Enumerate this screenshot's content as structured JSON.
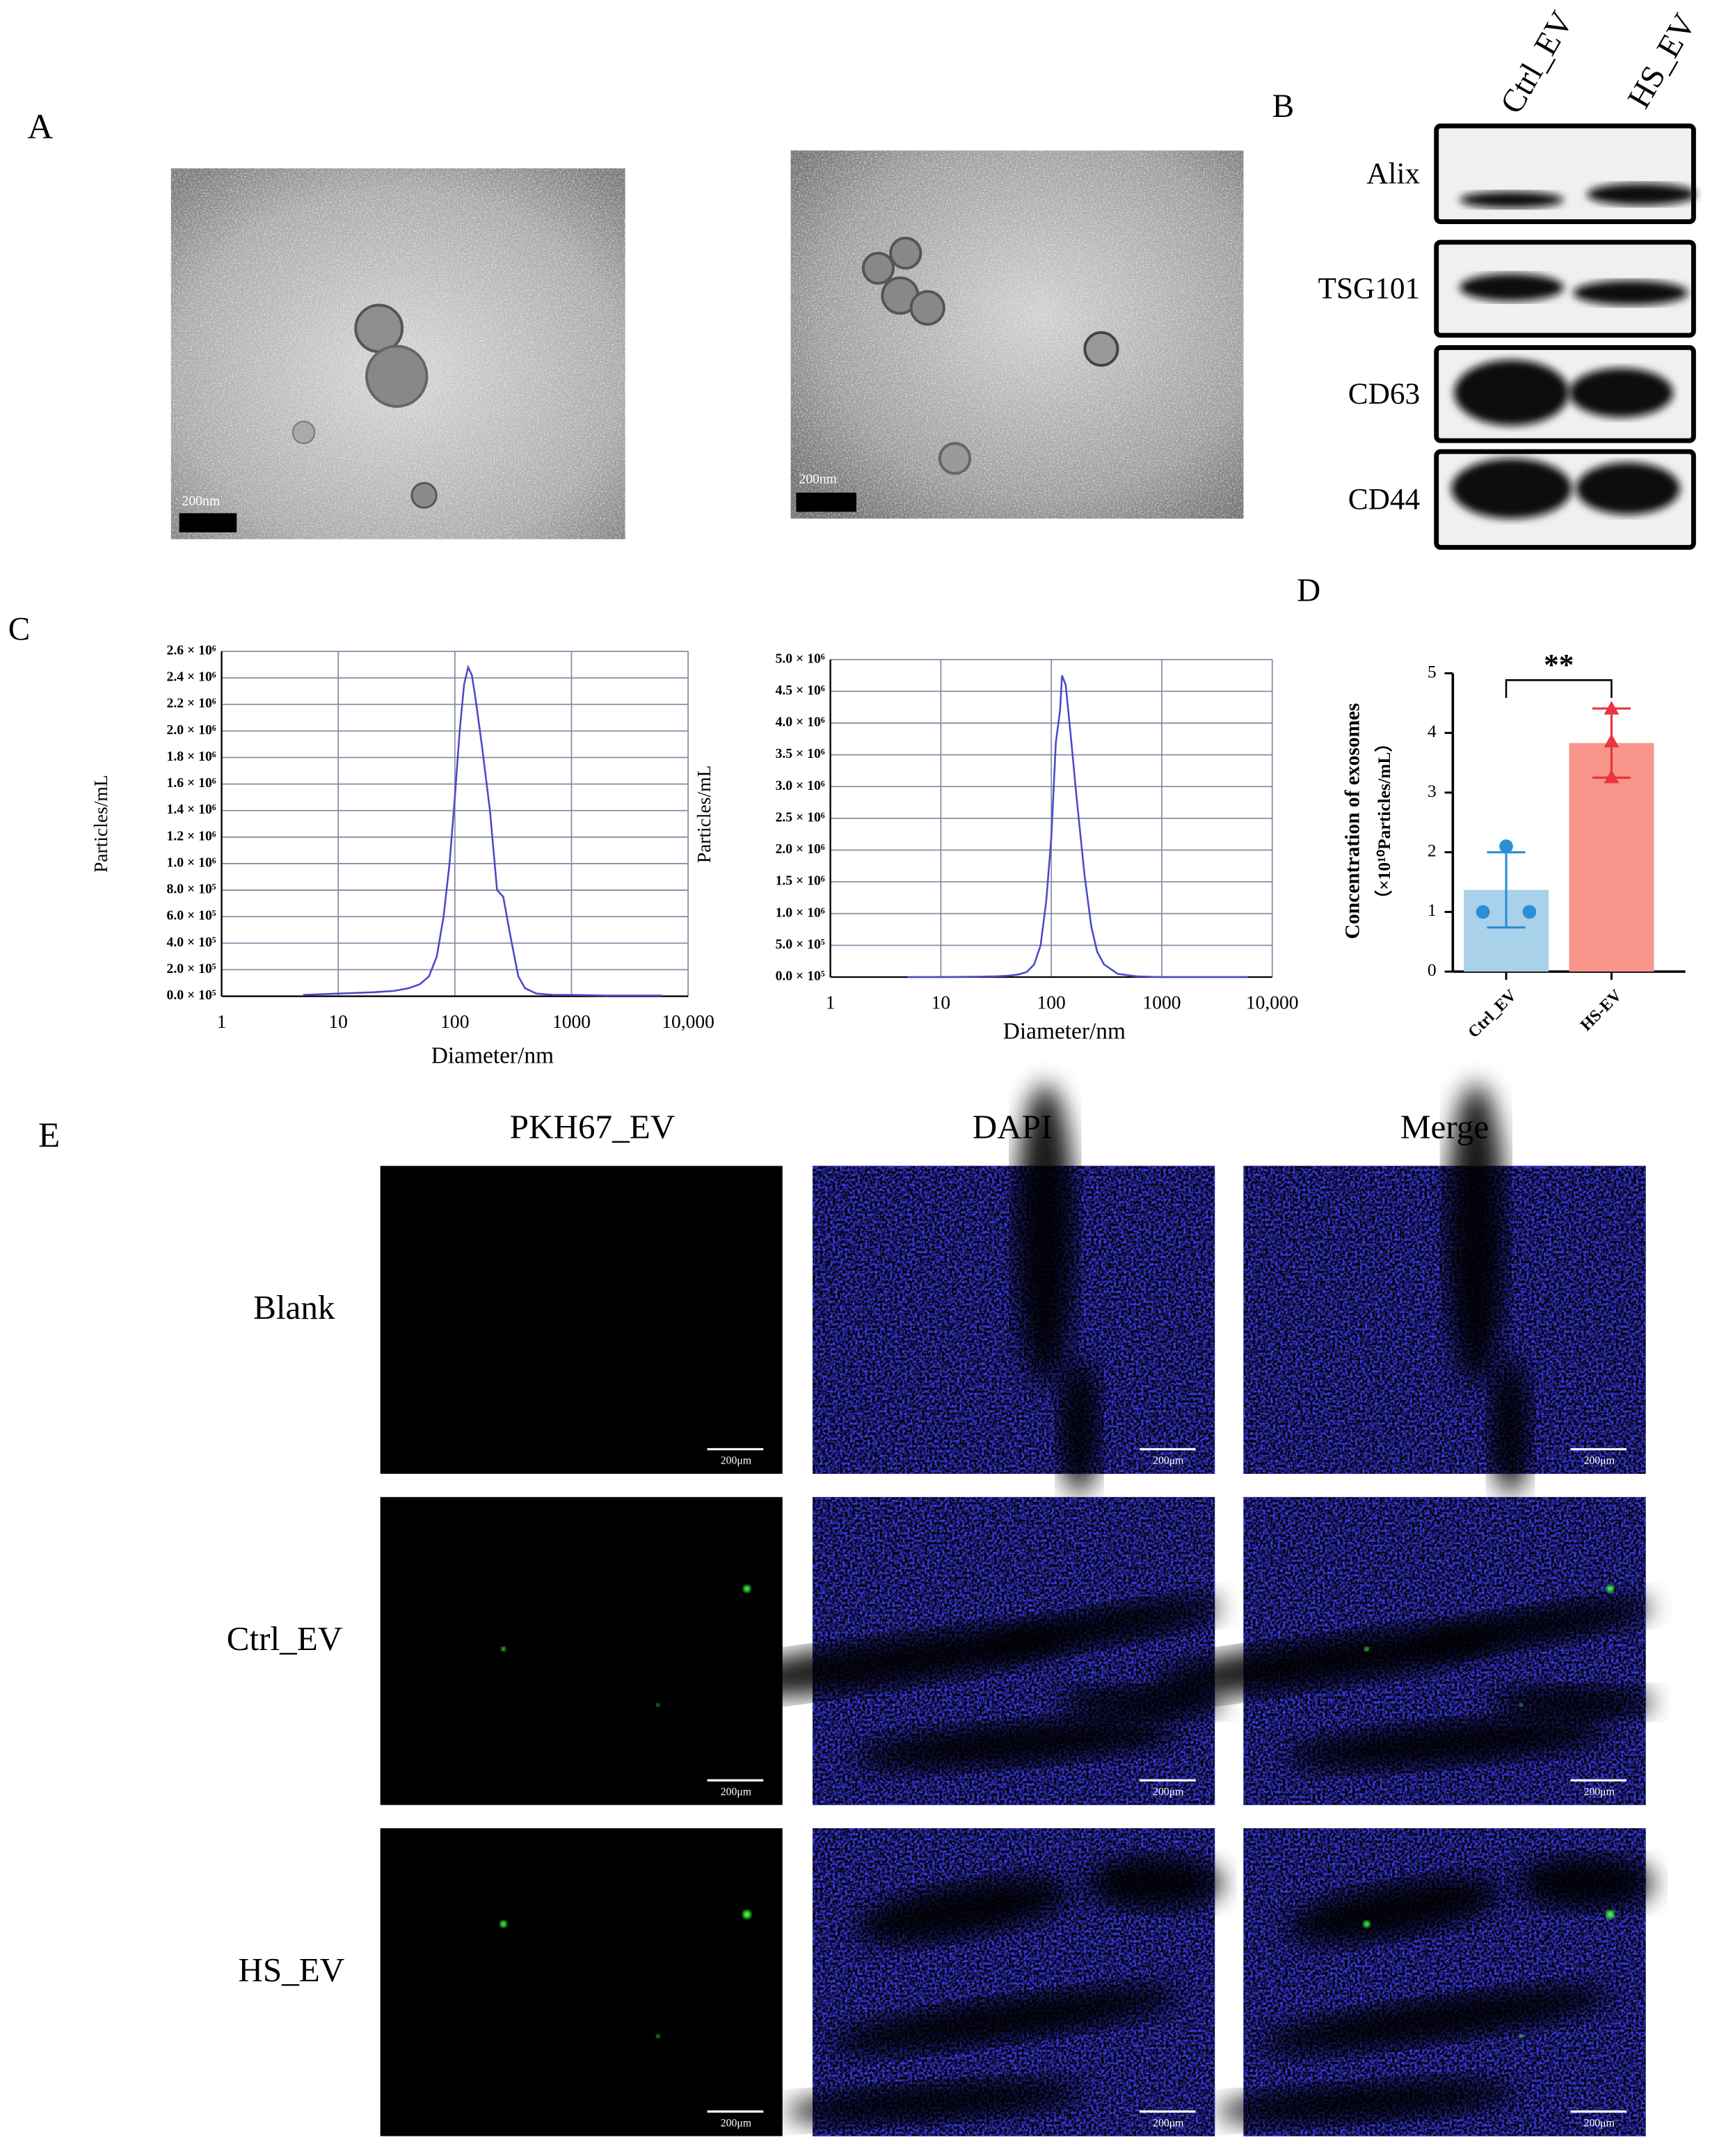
{
  "panel_labels": [
    "A",
    "B",
    "C",
    "D",
    "E"
  ],
  "tem": {
    "scale_labels": [
      "200nm",
      "200nm"
    ]
  },
  "western_blot": {
    "columns": [
      "Ctrl_EV",
      "HS_EV"
    ],
    "rows": [
      "Alix",
      "TSG101",
      "CD63",
      "CD44"
    ]
  },
  "chart_data": [
    {
      "type": "line",
      "xlabel": "Diameter/nm",
      "ylabel": "Particles/mL",
      "xscale": "log",
      "grid": true,
      "color": "#4a4ac8",
      "xlim": [
        1,
        10000
      ],
      "ylim": [
        0,
        2600000
      ],
      "xticks": [
        1,
        10,
        100,
        1000,
        {
          "value": 10000,
          "label": "10,000"
        }
      ],
      "yticks": [
        {
          "value": 0,
          "label": "0.0 × 10⁵"
        },
        {
          "value": 200000,
          "label": "2.0 × 10⁵"
        },
        {
          "value": 400000,
          "label": "4.0 × 10⁵"
        },
        {
          "value": 600000,
          "label": "6.0 × 10⁵"
        },
        {
          "value": 800000,
          "label": "8.0 × 10⁵"
        },
        {
          "value": 1000000,
          "label": "1.0 × 10⁶"
        },
        {
          "value": 1200000,
          "label": "1.2 × 10⁶"
        },
        {
          "value": 1400000,
          "label": "1.4 × 10⁶"
        },
        {
          "value": 1600000,
          "label": "1.6 × 10⁶"
        },
        {
          "value": 1800000,
          "label": "1.8 × 10⁶"
        },
        {
          "value": 2000000,
          "label": "2.0 × 10⁶"
        },
        {
          "value": 2200000,
          "label": "2.2 × 10⁶"
        },
        {
          "value": 2400000,
          "label": "2.4 × 10⁶"
        },
        {
          "value": 2600000,
          "label": "2.6 × 10⁶"
        }
      ],
      "x": [
        5,
        10,
        20,
        30,
        40,
        50,
        60,
        70,
        80,
        90,
        100,
        110,
        120,
        130,
        140,
        150,
        170,
        200,
        230,
        260,
        300,
        350,
        400,
        500,
        700,
        1000,
        2000,
        6000
      ],
      "values": [
        10000,
        20000,
        30000,
        40000,
        60000,
        90000,
        150000,
        300000,
        600000,
        1000000,
        1500000,
        2000000,
        2350000,
        2480000,
        2420000,
        2250000,
        1900000,
        1400000,
        800000,
        750000,
        450000,
        150000,
        60000,
        20000,
        10000,
        10000,
        5000,
        5000
      ]
    },
    {
      "type": "line",
      "xlabel": "Diameter/nm",
      "ylabel": "Particles/mL",
      "xscale": "log",
      "grid": true,
      "color": "#4a4ac8",
      "xlim": [
        1,
        10000
      ],
      "ylim": [
        0,
        5000000
      ],
      "xticks": [
        1,
        10,
        100,
        1000,
        {
          "value": 10000,
          "label": "10,000"
        }
      ],
      "yticks": [
        {
          "value": 0,
          "label": "0.0 × 10⁵"
        },
        {
          "value": 500000,
          "label": "5.0 × 10⁵"
        },
        {
          "value": 1000000,
          "label": "1.0 × 10⁶"
        },
        {
          "value": 1500000,
          "label": "1.5 × 10⁶"
        },
        {
          "value": 2000000,
          "label": "2.0 × 10⁶"
        },
        {
          "value": 2500000,
          "label": "2.5 × 10⁶"
        },
        {
          "value": 3000000,
          "label": "3.0 × 10⁶"
        },
        {
          "value": 3500000,
          "label": "3.5 × 10⁶"
        },
        {
          "value": 4000000,
          "label": "4.0 × 10⁶"
        },
        {
          "value": 4500000,
          "label": "4.5 × 10⁶"
        },
        {
          "value": 5000000,
          "label": "5.0 × 10⁶"
        }
      ],
      "x": [
        5,
        10,
        20,
        30,
        40,
        50,
        60,
        70,
        80,
        90,
        100,
        110,
        120,
        125,
        135,
        150,
        170,
        200,
        230,
        260,
        300,
        400,
        600,
        1000,
        2000,
        6000
      ],
      "values": [
        0,
        0,
        5000,
        10000,
        20000,
        40000,
        80000,
        200000,
        500000,
        1200000,
        2200000,
        3700000,
        4200000,
        4750000,
        4600000,
        3800000,
        2800000,
        1600000,
        800000,
        400000,
        200000,
        50000,
        10000,
        0,
        0,
        0
      ]
    },
    {
      "type": "bar",
      "ylabel": [
        "Concentration of exosomes",
        "（×10¹⁰Particles/mL）"
      ],
      "annotation": "**",
      "categories": [
        "Ctrl_EV",
        "HS-EV"
      ],
      "values": [
        1.37,
        3.83
      ],
      "errors": [
        0.63,
        0.58
      ],
      "points": [
        [
          1.0,
          2.1,
          1.0
        ],
        [
          4.4,
          3.85,
          3.25
        ]
      ],
      "colors": [
        "#a9d1ea",
        "#f9958b"
      ],
      "point_colors": [
        "#2b8fd6",
        "#e8353f"
      ],
      "markers": [
        "circle",
        "triangle"
      ],
      "ylim": [
        0,
        5
      ],
      "yticks": [
        0,
        1,
        2,
        3,
        4,
        5
      ]
    }
  ],
  "fluorescence": {
    "columns": [
      "PKH67_EV",
      "DAPI",
      "Merge"
    ],
    "rows": [
      "Blank",
      "Ctrl_EV",
      "HS_EV"
    ],
    "scale_label": "200μm"
  }
}
